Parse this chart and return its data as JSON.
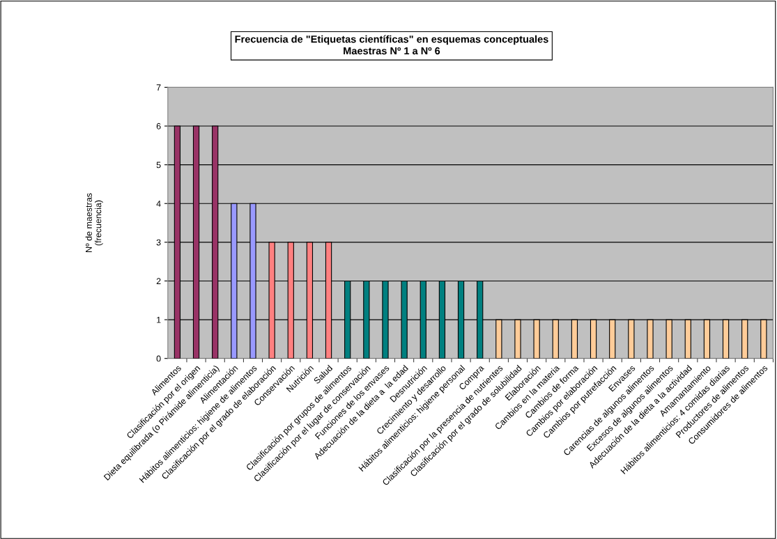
{
  "chart_data": {
    "type": "bar",
    "title": "Frecuencia de \"Etiquetas científicas\" en esquemas conceptuales",
    "subtitle": "Maestras Nº 1 a Nº 6",
    "ylabel": "Nº de maestras\n(frecuencia)",
    "categories": [
      "Alimentos",
      "Clasificación por el origen",
      "Dieta equilibrada (o Pirámide alimenticia)",
      "Alimentación",
      "Hábitos alimenticios: higiene de alimentos",
      "Clasificación por el grado de elaboración",
      "Conservación",
      "Nutrición",
      "Salud",
      "Clasificación por grupos de alimentos",
      "Clasificación por el lugar de conservación",
      "Funciones de los envases",
      "Adecuación de la dieta a  la edad",
      "Desnutrición",
      "Crecimiento y desarrollo",
      "Hábitos alimenticios: higiene personal",
      "Compra",
      "Clasificación por la presencia de nutrientes",
      "Clasificación por el grado de solubilidad",
      "Elaboración",
      "Cambios en la materia",
      "Cambios de forma",
      "Cambios por elaboración",
      "Cambios por putrefacción",
      "Envases",
      "Carencias de algunos alimentos",
      "Excesos de algunos alimentos",
      "Adecuación de la dieta a la actividad",
      "Amamantamiento",
      "Hábitos alimenticios: 4 comidas diarias",
      "Productores de alimentos",
      "Consumidores de alimentos"
    ],
    "values": [
      6,
      6,
      6,
      4,
      4,
      3,
      3,
      3,
      3,
      2,
      2,
      2,
      2,
      2,
      2,
      2,
      2,
      1,
      1,
      1,
      1,
      1,
      1,
      1,
      1,
      1,
      1,
      1,
      1,
      1,
      1,
      1
    ],
    "colors": [
      "#993366",
      "#993366",
      "#993366",
      "#9999ff",
      "#9999ff",
      "#ff8080",
      "#ff8080",
      "#ff8080",
      "#ff8080",
      "#008080",
      "#008080",
      "#008080",
      "#008080",
      "#008080",
      "#008080",
      "#008080",
      "#008080",
      "#ffcc99",
      "#ffcc99",
      "#ffcc99",
      "#ffcc99",
      "#ffcc99",
      "#ffcc99",
      "#ffcc99",
      "#ffcc99",
      "#ffcc99",
      "#ffcc99",
      "#ffcc99",
      "#ffcc99",
      "#ffcc99",
      "#ffcc99",
      "#ffcc99"
    ],
    "ylim": [
      0,
      7
    ],
    "yticks": [
      0,
      1,
      2,
      3,
      4,
      5,
      6,
      7
    ],
    "grid": "y",
    "legend": false
  }
}
